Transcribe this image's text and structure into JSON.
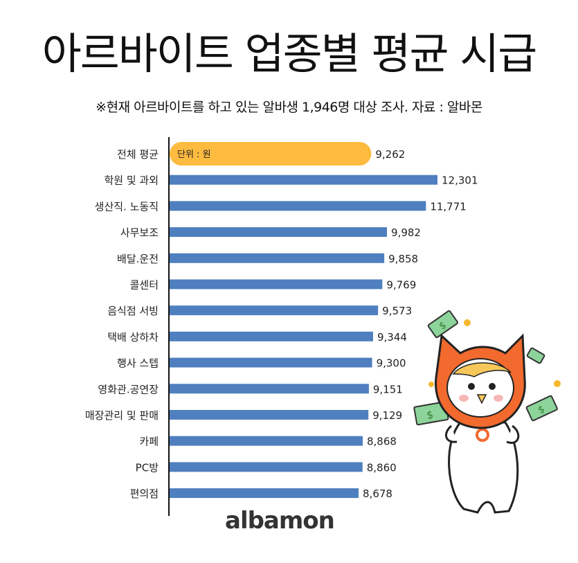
{
  "title": "아르바이트 업종별 평균 시급",
  "subtitle": "※현재 아르바이트를 하고 있는 알바생 1,946명 대상 조사. 자료 : 알바몬",
  "logo": "albamon",
  "colors": {
    "highlight": "#FDBB3F",
    "bar": "#4F7FBF",
    "axis": "#111111",
    "logo_accent": "#F26A2E"
  },
  "chart_data": {
    "type": "bar",
    "orientation": "horizontal",
    "unit_label": "단위 : 원",
    "categories": [
      "전체 평균",
      "학원 및 과외",
      "생산직. 노동직",
      "사무보조",
      "배달.운전",
      "콜센터",
      "음식점 서빙",
      "택배 상하차",
      "행사 스텝",
      "영화관.공연장",
      "매장관리 및 판매",
      "카페",
      "PC방",
      "편의점"
    ],
    "values": [
      9262,
      12301,
      11771,
      9982,
      9858,
      9769,
      9573,
      9344,
      9300,
      9151,
      9129,
      8868,
      8860,
      8678
    ],
    "value_labels": [
      "9,262",
      "12,301",
      "11,771",
      "9,982",
      "9,858",
      "9,769",
      "9,573",
      "9,344",
      "9,300",
      "9,151",
      "9,129",
      "8,868",
      "8,860",
      "8,678"
    ],
    "highlighted_category": "전체 평균",
    "xlim": [
      0,
      12301
    ],
    "grid": false,
    "legend": "none"
  }
}
